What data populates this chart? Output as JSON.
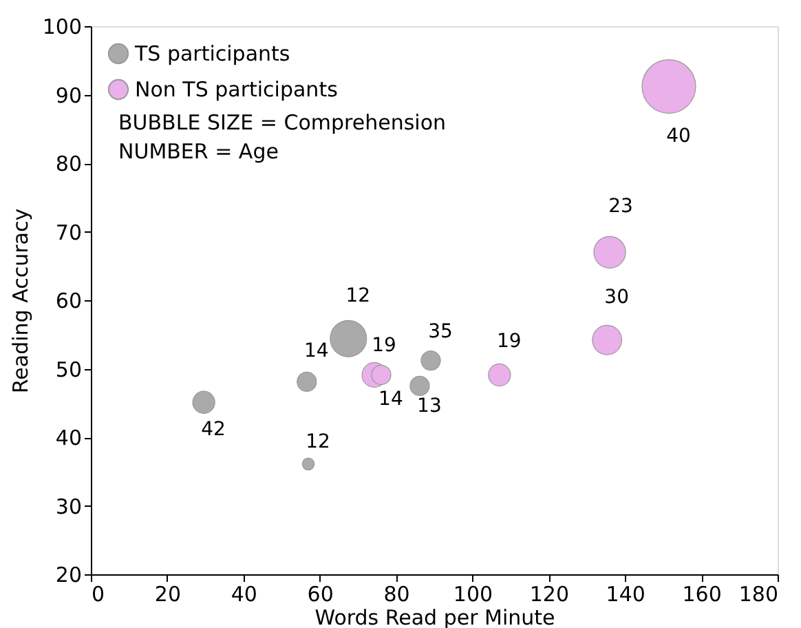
{
  "chart_data": {
    "type": "bubble",
    "xlabel": "Words Read per Minute",
    "ylabel": "Reading Accuracy",
    "xlim": [
      0,
      180
    ],
    "xticks": [
      0,
      20,
      40,
      60,
      80,
      100,
      120,
      140,
      160,
      180
    ],
    "ylim": [
      20,
      100
    ],
    "yticks": [
      20,
      30,
      40,
      50,
      60,
      70,
      80,
      90,
      100
    ],
    "grid": false,
    "legend": "top left",
    "series": [
      {
        "name": "TS participants",
        "color": "#aaaaaa",
        "x": [
          29.6,
          56.6,
          57,
          67.5,
          86.2,
          89.1
        ],
        "values": [
          45.1,
          48.1,
          36.1,
          54.4,
          47.5,
          51.2
        ],
        "sizes": [
          0.17,
          0.13,
          0.05,
          0.46,
          0.13,
          0.13
        ]
      },
      {
        "name": "Non TS participants",
        "color": "#eab0ea",
        "x": [
          74.3,
          76.1,
          107.1,
          136,
          135.3,
          151.5
        ],
        "values": [
          49.1,
          49.1,
          49.1,
          67,
          54.2,
          91.2
        ],
        "sizes": [
          0.21,
          0.13,
          0.17,
          0.35,
          0.3,
          1
        ]
      }
    ],
    "annotations": [
      "BUBBLE SIZE = Comprehension",
      "NUMBER = Age",
      {
        "text": "42",
        "x": 29.6,
        "y": 45.1
      },
      {
        "text": "14",
        "x": 56.6,
        "y": 48.1
      },
      {
        "text": "12",
        "x": 57,
        "y": 36.1
      },
      {
        "text": "12",
        "x": 67.5,
        "y": 54.4
      },
      {
        "text": "19",
        "x": 74.3,
        "y": 49.1
      },
      {
        "text": "14",
        "x": 76.1,
        "y": 49.1
      },
      {
        "text": "35",
        "x": 89.1,
        "y": 51.2
      },
      {
        "text": "13",
        "x": 86.2,
        "y": 47.5
      },
      {
        "text": "19",
        "x": 107.1,
        "y": 49.1
      },
      {
        "text": "23",
        "x": 136,
        "y": 67
      },
      {
        "text": "30",
        "x": 135.3,
        "y": 54.2
      },
      {
        "text": "40",
        "x": 151.5,
        "y": 91.2
      }
    ]
  }
}
